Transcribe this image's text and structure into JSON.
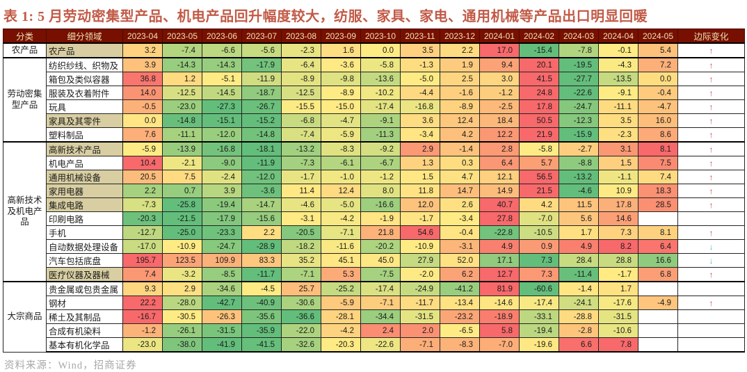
{
  "title": "表 1:  5 月劳动密集型产品、机电产品回升幅度较大，纺服、家具、家电、通用机械等产品出口明显回暖",
  "source": "资料来源：Wind，招商证券",
  "header": {
    "category_col": "分类",
    "segment_col": "细分领域",
    "change_col": "边际变化"
  },
  "arrows": {
    "up": "↑",
    "down": "↓"
  },
  "colors": {
    "title_text": "#c25a47",
    "header_bg": "#771000",
    "header_text": "#f0e0b2",
    "highlight_label_bg": "#d8cea2",
    "up_arrow": "#c0504d",
    "down_arrow": "#41c1c8",
    "scale_min_green": "#63BE7B",
    "scale_mid_yellow": "#FFEB84",
    "scale_max_red": "#F8696B"
  },
  "chart_data": {
    "type": "heatmap",
    "title": "表 1:  5 月劳动密集型产品、机电产品回升幅度较大，纺服、家具、家电、通用机械等产品出口明显回暖",
    "legend_note": "per-row 3-color scale: green=min, yellow=median, red=max; 边际变化 arrow up=red, down=teal",
    "columns": [
      "2023-04",
      "2023-05",
      "2023-06",
      "2023-07",
      "2023-08",
      "2023-09",
      "2023-10",
      "2023-11",
      "2023-12",
      "2024-01",
      "2024-02",
      "2024-03",
      "2024-04",
      "2024-05"
    ],
    "groups": [
      {
        "category": "农产品",
        "rows": [
          {
            "label": "农产品",
            "tan": true,
            "values": [
              3.2,
              -7.4,
              -6.6,
              -5.6,
              -2.3,
              1.6,
              0.0,
              3.5,
              2.2,
              17.0,
              -15.4,
              -7.8,
              -0.1,
              5.4
            ],
            "change": "up"
          }
        ]
      },
      {
        "category": "劳动密集型产品",
        "rows": [
          {
            "label": "纺织纱线、织物及",
            "tan": false,
            "values": [
              3.9,
              -14.3,
              -14.3,
              -17.9,
              -6.4,
              -3.6,
              -5.8,
              -1.3,
              1.9,
              9.4,
              20.1,
              -19.5,
              -4.3,
              7.2
            ],
            "change": "up"
          },
          {
            "label": "箱包及类似容器",
            "tan": false,
            "values": [
              36.8,
              1.2,
              -5.1,
              -11.9,
              -8.9,
              -9.8,
              -13.6,
              -5.0,
              2.5,
              3.0,
              41.5,
              -27.7,
              -13.5,
              0.0
            ],
            "change": "up"
          },
          {
            "label": "服装及衣着附件",
            "tan": false,
            "values": [
              14.0,
              -12.5,
              -14.5,
              -18.7,
              -12.5,
              -8.9,
              -10.2,
              -4.4,
              -1.6,
              -1.2,
              24.8,
              -22.6,
              -9.1,
              -0.4
            ],
            "change": "up"
          },
          {
            "label": "玩具",
            "tan": false,
            "values": [
              -0.5,
              -23.0,
              -27.3,
              -26.7,
              -15.5,
              -15.0,
              -17.4,
              -16.8,
              -8.9,
              -2.5,
              17.8,
              -24.7,
              -11.1,
              -4.7
            ],
            "change": "up"
          },
          {
            "label": "家具及其零件",
            "tan": true,
            "values": [
              0.0,
              -14.8,
              -15.1,
              -15.2,
              -6.8,
              -4.7,
              -9.1,
              3.6,
              12.4,
              18.4,
              50.5,
              -12.3,
              3.5,
              16.0
            ],
            "change": "up"
          },
          {
            "label": "塑料制品",
            "tan": false,
            "values": [
              7.6,
              -11.1,
              -12.0,
              -14.8,
              -7.4,
              -5.9,
              -11.3,
              -3.4,
              4.2,
              12.2,
              21.9,
              -15.9,
              -2.3,
              8.6
            ],
            "change": "up"
          }
        ]
      },
      {
        "category": "高新技术及机电产品",
        "rows": [
          {
            "label": "高新技术产品",
            "tan": true,
            "values": [
              -5.9,
              -13.9,
              -16.8,
              -18.1,
              -13.2,
              -8.3,
              -9.2,
              2.9,
              -1.4,
              2.8,
              -5.8,
              -2.7,
              3.1,
              8.1
            ],
            "change": "up"
          },
          {
            "label": "机电产品",
            "tan": false,
            "values": [
              10.4,
              -2.1,
              -9.0,
              -11.9,
              -7.3,
              -6.1,
              -6.7,
              1.3,
              0.3,
              6.4,
              5.7,
              -8.8,
              1.5,
              7.5
            ],
            "change": "up"
          },
          {
            "label": "通用机械设备",
            "tan": true,
            "values": [
              20.5,
              7.5,
              -2.4,
              -12.0,
              -1.7,
              -1.0,
              -1.2,
              1.5,
              4.7,
              12.1,
              56.5,
              -13.2,
              -1.1,
              7.4
            ],
            "change": "up"
          },
          {
            "label": "家用电器",
            "tan": true,
            "values": [
              2.2,
              0.7,
              3.9,
              -3.6,
              11.4,
              12.4,
              8.0,
              11.8,
              14.7,
              14.9,
              21.5,
              -4.6,
              10.9,
              18.3
            ],
            "change": "up"
          },
          {
            "label": "集成电路",
            "tan": true,
            "values": [
              -7.3,
              -25.8,
              -19.4,
              -14.7,
              -4.6,
              -5.0,
              -16.6,
              12.0,
              2.6,
              40.7,
              4.2,
              11.5,
              17.8,
              28.5
            ],
            "change": "up"
          },
          {
            "label": "印刷电路",
            "tan": false,
            "values": [
              -20.3,
              -21.5,
              -17.9,
              -15.6,
              -3.1,
              -4.2,
              -1.9,
              -1.7,
              -3.4,
              27.8,
              -7.0,
              5.6,
              14.6,
              null
            ],
            "change": null
          },
          {
            "label": "手机",
            "tan": false,
            "values": [
              -12.7,
              -25.0,
              -23.3,
              2.2,
              -20.5,
              -7.1,
              21.8,
              54.6,
              -0.4,
              -22.8,
              -10.5,
              1.7,
              7.3,
              8.1
            ],
            "change": "up"
          },
          {
            "label": "自动数据处理设备",
            "tan": false,
            "values": [
              -17.0,
              -10.9,
              -24.7,
              -28.9,
              -18.2,
              -11.6,
              -20.2,
              -10.9,
              -3.1,
              4.9,
              0.9,
              4.9,
              8.2,
              6.4
            ],
            "change": "down"
          },
          {
            "label": "汽车包括底盘",
            "tan": false,
            "values": [
              195.7,
              123.5,
              109.9,
              83.3,
              35.2,
              45.1,
              45.0,
              27.9,
              52.0,
              17.1,
              7.3,
              28.4,
              28.8,
              16.6
            ],
            "change": "down"
          },
          {
            "label": "医疗仪器及器械",
            "tan": true,
            "values": [
              7.4,
              -3.2,
              -8.5,
              -11.7,
              -7.1,
              5.3,
              -7.5,
              -2.0,
              6.2,
              12.7,
              7.3,
              -11.4,
              -1.7,
              6.8
            ],
            "change": "up"
          }
        ]
      },
      {
        "category": "大宗商品",
        "rows": [
          {
            "label": "贵金属或包贵金属",
            "tan": false,
            "values": [
              9.3,
              2.9,
              -34.6,
              -4.5,
              25.7,
              -25.2,
              -17.4,
              -24.9,
              -41.2,
              81.9,
              -60.6,
              -1.4,
              1.7,
              null
            ],
            "change": null
          },
          {
            "label": "钢材",
            "tan": false,
            "values": [
              22.2,
              -28.0,
              -42.7,
              -40.9,
              -30.6,
              -5.9,
              -7.1,
              -11.7,
              -13.4,
              -14.6,
              -17.4,
              -24.1,
              -17.6,
              -4.9
            ],
            "change": "up"
          },
          {
            "label": "稀土及其制品",
            "tan": false,
            "values": [
              -16.7,
              -30.5,
              -26.3,
              -35.6,
              -36.6,
              -28.1,
              -34.4,
              -31.5,
              -23.2,
              -18.9,
              -33.1,
              -28.8,
              -31.5,
              null
            ],
            "change": null
          },
          {
            "label": "合成有机染料",
            "tan": false,
            "values": [
              -1.2,
              -26.1,
              -31.5,
              -35.9,
              -22.0,
              -4.2,
              2.4,
              2.0,
              -6.5,
              5.8,
              -19.4,
              -2.8,
              -10.6,
              null
            ],
            "change": null
          },
          {
            "label": "基本有机化学品",
            "tan": false,
            "values": [
              -23.0,
              -38.0,
              -41.9,
              -41.5,
              -32.6,
              -20.3,
              -22.6,
              -7.1,
              -8.3,
              -7.0,
              -19.6,
              6.6,
              7.8,
              null
            ],
            "change": null
          }
        ]
      }
    ]
  }
}
